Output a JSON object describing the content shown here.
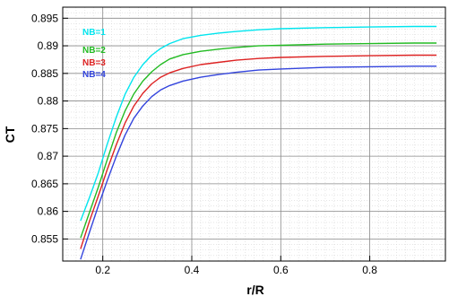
{
  "chart_data": {
    "type": "line",
    "xlabel": "r/R",
    "ylabel": "CT",
    "xlim": [
      0.11,
      0.97
    ],
    "ylim": [
      0.851,
      0.897
    ],
    "x_ticks": [
      "0.2",
      "0.4",
      "0.6",
      "0.8"
    ],
    "x_tick_values": [
      0.2,
      0.4,
      0.6,
      0.8
    ],
    "y_ticks": [
      "0.855",
      "0.86",
      "0.865",
      "0.87",
      "0.875",
      "0.88",
      "0.885",
      "0.89",
      "0.895"
    ],
    "y_tick_values": [
      0.855,
      0.86,
      0.865,
      0.87,
      0.875,
      0.88,
      0.885,
      0.89,
      0.895
    ],
    "grid": true,
    "legend_position": "top-left",
    "series": [
      {
        "name": "NB=1",
        "color": "#00e5ee",
        "x": [
          0.15,
          0.17,
          0.19,
          0.21,
          0.23,
          0.25,
          0.27,
          0.29,
          0.31,
          0.33,
          0.35,
          0.38,
          0.42,
          0.46,
          0.5,
          0.55,
          0.6,
          0.7,
          0.8,
          0.9,
          0.95
        ],
        "y": [
          0.8583,
          0.8625,
          0.867,
          0.8722,
          0.877,
          0.8812,
          0.8843,
          0.8866,
          0.8883,
          0.8895,
          0.8904,
          0.8913,
          0.8919,
          0.8923,
          0.8926,
          0.8929,
          0.8931,
          0.8933,
          0.8934,
          0.8935,
          0.8935
        ]
      },
      {
        "name": "NB=2",
        "color": "#22bb22",
        "x": [
          0.15,
          0.17,
          0.19,
          0.21,
          0.23,
          0.25,
          0.27,
          0.29,
          0.31,
          0.33,
          0.35,
          0.38,
          0.42,
          0.46,
          0.5,
          0.55,
          0.6,
          0.7,
          0.8,
          0.9,
          0.95
        ],
        "y": [
          0.8552,
          0.8598,
          0.8644,
          0.8694,
          0.8742,
          0.8782,
          0.8813,
          0.8836,
          0.8853,
          0.8866,
          0.8876,
          0.8884,
          0.889,
          0.8894,
          0.8897,
          0.89,
          0.8901,
          0.8903,
          0.8904,
          0.8905,
          0.8905
        ]
      },
      {
        "name": "NB=3",
        "color": "#dd2222",
        "x": [
          0.15,
          0.17,
          0.19,
          0.21,
          0.23,
          0.25,
          0.27,
          0.29,
          0.31,
          0.33,
          0.35,
          0.38,
          0.42,
          0.46,
          0.5,
          0.55,
          0.6,
          0.7,
          0.8,
          0.9,
          0.95
        ],
        "y": [
          0.8532,
          0.8582,
          0.8628,
          0.8676,
          0.872,
          0.876,
          0.8791,
          0.8814,
          0.8831,
          0.8843,
          0.8851,
          0.8859,
          0.8866,
          0.887,
          0.8874,
          0.8877,
          0.8879,
          0.8881,
          0.8882,
          0.8883,
          0.8883
        ]
      },
      {
        "name": "NB=4",
        "color": "#3344dd",
        "x": [
          0.15,
          0.17,
          0.19,
          0.21,
          0.23,
          0.25,
          0.27,
          0.29,
          0.31,
          0.33,
          0.35,
          0.38,
          0.42,
          0.46,
          0.5,
          0.55,
          0.6,
          0.7,
          0.8,
          0.9,
          0.95
        ],
        "y": [
          0.8513,
          0.8562,
          0.861,
          0.8656,
          0.8699,
          0.8738,
          0.8769,
          0.8791,
          0.8808,
          0.882,
          0.8828,
          0.8836,
          0.8843,
          0.8848,
          0.8852,
          0.8856,
          0.8858,
          0.8861,
          0.8862,
          0.8863,
          0.8863
        ]
      }
    ]
  }
}
